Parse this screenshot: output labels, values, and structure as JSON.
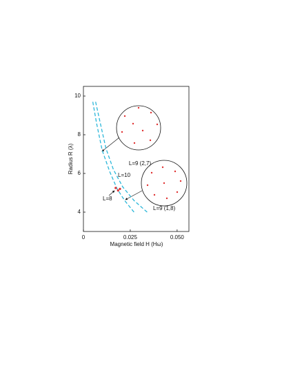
{
  "chart_data": {
    "type": "line",
    "x_label": "Magnetic field H (Hω)",
    "y_label": "Radius R (λ)",
    "xlim": [
      0,
      0.0563
    ],
    "ylim": [
      3,
      10.5
    ],
    "xticks": [
      0,
      0.025,
      {
        "value": 0.05,
        "label": "0.050"
      }
    ],
    "yticks": [
      4,
      6,
      8,
      10
    ],
    "series": [
      {
        "color": "#29b6d9",
        "style": "dashed",
        "x": [
          0.005,
          0.007,
          0.01,
          0.014,
          0.018,
          0.022,
          0.027
        ],
        "values": [
          9.7,
          8.6,
          7.2,
          6.1,
          5.2,
          4.6,
          4.0
        ]
      },
      {
        "color": "#29b6d9",
        "style": "dashed",
        "x": [
          0.0065,
          0.009,
          0.012,
          0.016,
          0.021,
          0.027,
          0.034
        ],
        "values": [
          9.7,
          8.6,
          7.3,
          6.2,
          5.3,
          4.6,
          4.0
        ]
      }
    ],
    "points": {
      "color": "#e03030",
      "x": [
        0.0172,
        0.0185,
        0.0195
      ],
      "values": [
        5.25,
        5.12,
        5.2
      ]
    },
    "annotations": [
      "L=9 (2,7)",
      "L=10",
      "L=8",
      "L=9 (1,8)"
    ]
  }
}
